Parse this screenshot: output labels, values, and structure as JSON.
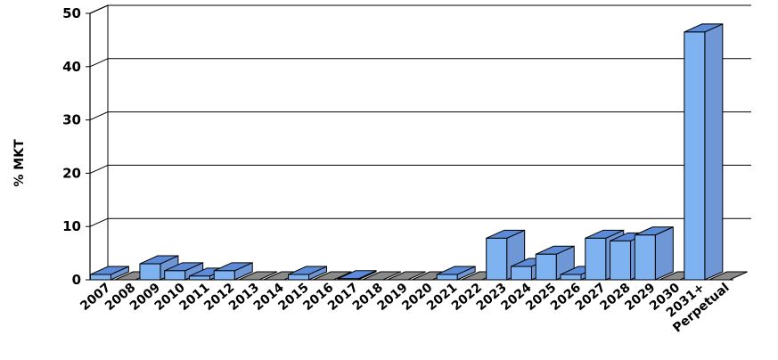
{
  "chart_data": {
    "type": "bar",
    "title": "",
    "xlabel": "",
    "ylabel": "% MKT",
    "ylim": [
      0,
      50
    ],
    "yticks": [
      "0",
      "10",
      "20",
      "30",
      "40",
      "50"
    ],
    "grid": true,
    "categories": [
      "2007",
      "2008",
      "2009",
      "2010",
      "2011",
      "2012",
      "2013",
      "2014",
      "2015",
      "2016",
      "2017",
      "2018",
      "2019",
      "2020",
      "2021",
      "2022",
      "2023",
      "2024",
      "2025",
      "2026",
      "2027",
      "2028",
      "2029",
      "2030",
      "2031+",
      "Perpetual"
    ],
    "values": [
      1.0,
      0,
      3.0,
      1.7,
      0.7,
      1.7,
      0,
      0,
      1.0,
      0,
      0.2,
      0,
      0,
      0,
      1.0,
      0,
      7.8,
      2.5,
      4.8,
      1.0,
      7.8,
      7.3,
      8.4,
      0,
      46.5,
      0
    ],
    "colors": {
      "bar_front": "#7fb2f0",
      "bar_top": "#5a8ad8",
      "bar_side": "#6f97d6",
      "bar_outline": "#000000",
      "zero_slab": "#8a8a8a",
      "gridline": "#000000"
    }
  }
}
